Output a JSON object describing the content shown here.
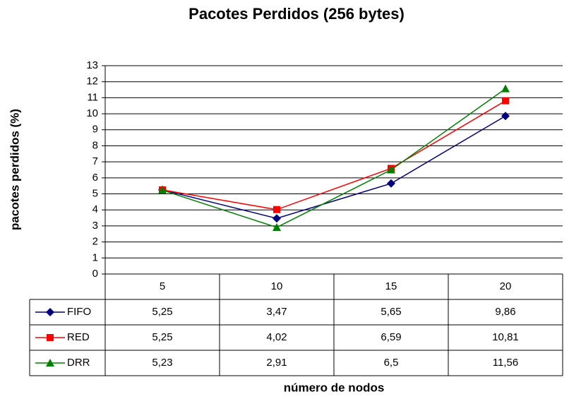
{
  "chart_data": {
    "type": "line",
    "title": "Pacotes Perdidos (256 bytes)",
    "y_label": "pacotes perdidos (%)",
    "x_label": "número de nodos",
    "categories": [
      "5",
      "10",
      "15",
      "20"
    ],
    "series": [
      {
        "name": "FIFO",
        "color": "#000080",
        "marker": "diamond",
        "values": [
          5.25,
          3.47,
          5.65,
          9.86
        ],
        "value_labels": [
          "5,25",
          "3,47",
          "5,65",
          "9,86"
        ]
      },
      {
        "name": "RED",
        "color": "#ff0000",
        "marker": "square",
        "values": [
          5.25,
          4.02,
          6.59,
          10.81
        ],
        "value_labels": [
          "5,25",
          "4,02",
          "6,59",
          "10,81"
        ]
      },
      {
        "name": "DRR",
        "color": "#008000",
        "marker": "triangle",
        "values": [
          5.23,
          2.91,
          6.5,
          11.56
        ],
        "value_labels": [
          "5,23",
          "2,91",
          "6,5",
          "11,56"
        ]
      }
    ],
    "ylim": [
      0,
      13
    ],
    "yticks": [
      0,
      1,
      2,
      3,
      4,
      5,
      6,
      7,
      8,
      9,
      10,
      11,
      12,
      13
    ],
    "grid": true
  }
}
